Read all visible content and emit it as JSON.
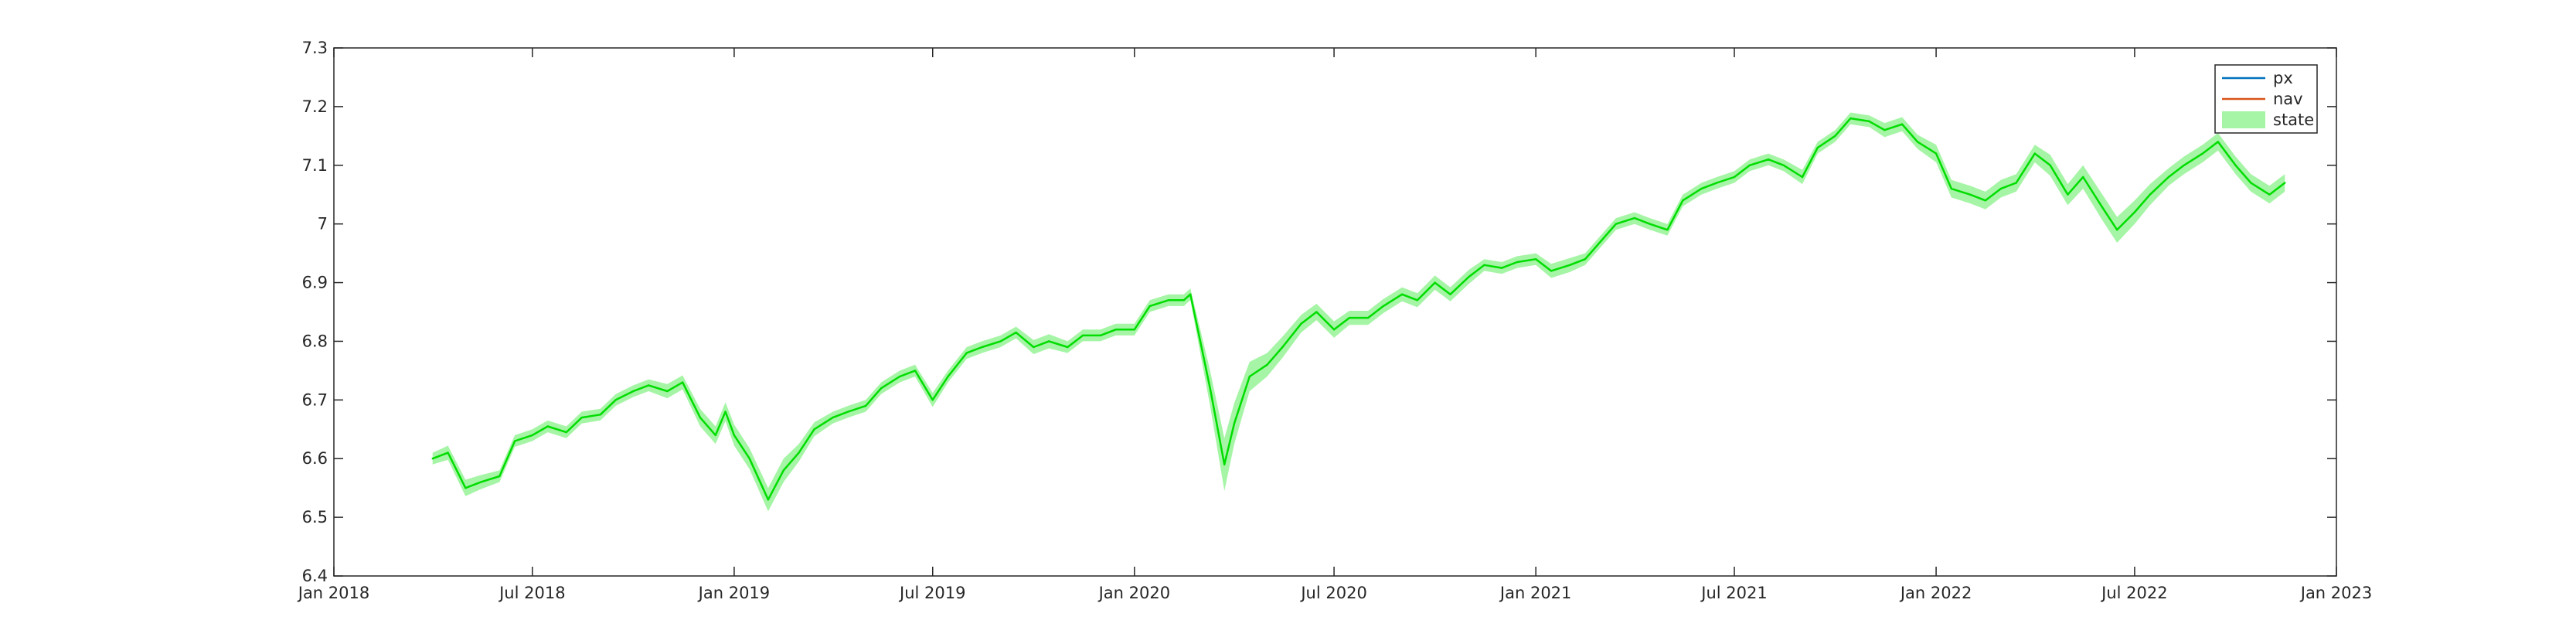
{
  "chart_data": {
    "type": "line",
    "title": "",
    "xlabel": "",
    "ylabel": "",
    "grid": false,
    "legend_position": "top-right",
    "xlim": [
      "2018-01-01",
      "2023-01-01"
    ],
    "ylim": [
      6.4,
      7.3
    ],
    "x_ticks": [
      "Jan 2018",
      "Jul 2018",
      "Jan 2019",
      "Jul 2019",
      "Jan 2020",
      "Jul 2020",
      "Jan 2021",
      "Jul 2021",
      "Jan 2022",
      "Jul 2022",
      "Jan 2023"
    ],
    "x_tick_dates": [
      "2018-01-01",
      "2018-07-01",
      "2019-01-01",
      "2019-07-01",
      "2020-01-01",
      "2020-07-01",
      "2021-01-01",
      "2021-07-01",
      "2022-01-01",
      "2022-07-01",
      "2023-01-01"
    ],
    "y_ticks": [
      "6.4",
      "6.5",
      "6.6",
      "6.7",
      "6.8",
      "6.9",
      "7",
      "7.1",
      "7.2",
      "7.3"
    ],
    "y_tick_values": [
      6.4,
      6.5,
      6.6,
      6.7,
      6.8,
      6.9,
      7.0,
      7.1,
      7.2,
      7.3
    ],
    "legend": [
      {
        "name": "px",
        "color": "#0072bd",
        "kind": "line"
      },
      {
        "name": "nav",
        "color": "#d95319",
        "kind": "line"
      },
      {
        "name": "state",
        "color": "#a6f5a6",
        "kind": "band"
      }
    ],
    "series": [
      {
        "name": "state",
        "color": "#00dd00",
        "band_color": "#a6f5a6",
        "x": [
          "2018-04-01",
          "2018-04-15",
          "2018-05-01",
          "2018-05-15",
          "2018-06-01",
          "2018-06-15",
          "2018-07-01",
          "2018-07-15",
          "2018-08-01",
          "2018-08-15",
          "2018-09-01",
          "2018-09-15",
          "2018-10-01",
          "2018-10-15",
          "2018-11-01",
          "2018-11-15",
          "2018-12-01",
          "2018-12-15",
          "2018-12-24",
          "2019-01-01",
          "2019-01-15",
          "2019-02-01",
          "2019-02-15",
          "2019-03-01",
          "2019-03-15",
          "2019-04-01",
          "2019-04-15",
          "2019-05-01",
          "2019-05-15",
          "2019-06-01",
          "2019-06-15",
          "2019-07-01",
          "2019-07-15",
          "2019-08-01",
          "2019-08-15",
          "2019-09-01",
          "2019-09-15",
          "2019-10-01",
          "2019-10-15",
          "2019-11-01",
          "2019-11-15",
          "2019-12-01",
          "2019-12-15",
          "2020-01-01",
          "2020-01-15",
          "2020-02-01",
          "2020-02-15",
          "2020-02-21",
          "2020-03-01",
          "2020-03-10",
          "2020-03-23",
          "2020-04-01",
          "2020-04-15",
          "2020-05-01",
          "2020-05-15",
          "2020-06-01",
          "2020-06-15",
          "2020-07-01",
          "2020-07-15",
          "2020-08-01",
          "2020-08-15",
          "2020-09-01",
          "2020-09-15",
          "2020-10-01",
          "2020-10-15",
          "2020-11-01",
          "2020-11-15",
          "2020-12-01",
          "2020-12-15",
          "2021-01-01",
          "2021-01-15",
          "2021-02-01",
          "2021-02-15",
          "2021-03-01",
          "2021-03-15",
          "2021-04-01",
          "2021-04-15",
          "2021-05-01",
          "2021-05-15",
          "2021-06-01",
          "2021-06-15",
          "2021-07-01",
          "2021-07-15",
          "2021-08-01",
          "2021-08-15",
          "2021-09-01",
          "2021-09-15",
          "2021-10-01",
          "2021-10-15",
          "2021-11-01",
          "2021-11-15",
          "2021-12-01",
          "2021-12-15",
          "2022-01-01",
          "2022-01-15",
          "2022-02-01",
          "2022-02-15",
          "2022-03-01",
          "2022-03-15",
          "2022-04-01",
          "2022-04-15",
          "2022-05-01",
          "2022-05-15",
          "2022-06-01",
          "2022-06-15",
          "2022-07-01",
          "2022-07-15",
          "2022-08-01",
          "2022-08-15",
          "2022-09-01",
          "2022-09-15",
          "2022-10-01",
          "2022-10-15",
          "2022-11-01",
          "2022-11-15"
        ],
        "values": [
          6.6,
          6.61,
          6.55,
          6.56,
          6.57,
          6.63,
          6.64,
          6.655,
          6.645,
          6.67,
          6.675,
          6.7,
          6.715,
          6.725,
          6.715,
          6.73,
          6.67,
          6.64,
          6.68,
          6.64,
          6.6,
          6.53,
          6.58,
          6.61,
          6.65,
          6.67,
          6.68,
          6.69,
          6.72,
          6.74,
          6.75,
          6.7,
          6.74,
          6.78,
          6.79,
          6.8,
          6.815,
          6.79,
          6.8,
          6.79,
          6.81,
          6.81,
          6.82,
          6.82,
          6.86,
          6.87,
          6.87,
          6.88,
          6.8,
          6.72,
          6.59,
          6.66,
          6.74,
          6.76,
          6.79,
          6.83,
          6.85,
          6.82,
          6.84,
          6.84,
          6.86,
          6.88,
          6.87,
          6.9,
          6.88,
          6.91,
          6.93,
          6.925,
          6.935,
          6.94,
          6.92,
          6.93,
          6.94,
          6.97,
          7.0,
          7.01,
          7.0,
          6.99,
          7.04,
          7.06,
          7.07,
          7.08,
          7.1,
          7.11,
          7.1,
          7.08,
          7.13,
          7.15,
          7.18,
          7.175,
          7.16,
          7.17,
          7.14,
          7.12,
          7.06,
          7.05,
          7.04,
          7.06,
          7.07,
          7.12,
          7.1,
          7.05,
          7.08,
          7.03,
          6.99,
          7.02,
          7.05,
          7.08,
          7.1,
          7.12,
          7.14,
          7.1,
          7.07,
          7.05,
          7.07
        ],
        "band_halfwidth": [
          0.01,
          0.012,
          0.014,
          0.012,
          0.01,
          0.01,
          0.01,
          0.01,
          0.01,
          0.01,
          0.01,
          0.01,
          0.01,
          0.01,
          0.012,
          0.012,
          0.015,
          0.015,
          0.016,
          0.018,
          0.018,
          0.02,
          0.02,
          0.015,
          0.012,
          0.01,
          0.01,
          0.01,
          0.01,
          0.01,
          0.01,
          0.012,
          0.01,
          0.01,
          0.01,
          0.01,
          0.01,
          0.012,
          0.012,
          0.01,
          0.01,
          0.01,
          0.01,
          0.01,
          0.01,
          0.01,
          0.01,
          0.01,
          0.02,
          0.03,
          0.045,
          0.035,
          0.025,
          0.02,
          0.018,
          0.015,
          0.014,
          0.014,
          0.012,
          0.012,
          0.012,
          0.012,
          0.012,
          0.012,
          0.012,
          0.012,
          0.01,
          0.01,
          0.01,
          0.01,
          0.012,
          0.012,
          0.01,
          0.01,
          0.01,
          0.01,
          0.01,
          0.01,
          0.01,
          0.01,
          0.01,
          0.01,
          0.01,
          0.01,
          0.01,
          0.012,
          0.01,
          0.01,
          0.01,
          0.01,
          0.012,
          0.012,
          0.012,
          0.015,
          0.015,
          0.015,
          0.015,
          0.015,
          0.015,
          0.015,
          0.018,
          0.018,
          0.02,
          0.022,
          0.022,
          0.02,
          0.018,
          0.015,
          0.015,
          0.015,
          0.015,
          0.015,
          0.015,
          0.015,
          0.015
        ]
      }
    ]
  }
}
